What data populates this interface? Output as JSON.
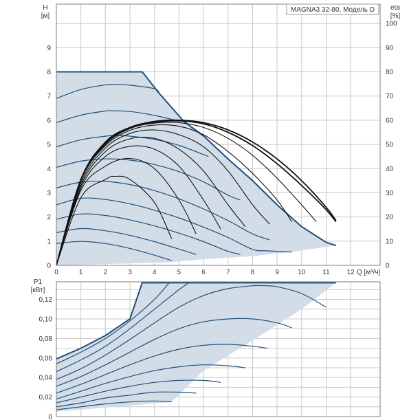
{
  "chart_data": [
    {
      "type": "line",
      "title": "MAGNA3 32-80, Модель D",
      "xlabel": "Q [м³/ч]",
      "x_ticks": [
        "0",
        "1",
        "2",
        "3",
        "4",
        "5",
        "6",
        "7",
        "8",
        "9",
        "10",
        "11",
        "12"
      ],
      "y_left_label": "H",
      "y_left_unit": "[м]",
      "y_left_ticks": [
        "0",
        "1",
        "2",
        "3",
        "4",
        "5",
        "6",
        "7",
        "8",
        "9"
      ],
      "y_right_label": "eta",
      "y_right_unit": "[%]",
      "y_right_ticks": [
        "0",
        "10",
        "20",
        "30",
        "40",
        "50",
        "60",
        "70",
        "80",
        "90",
        "100"
      ],
      "xlim": [
        0,
        13.2
      ],
      "ylim_left": [
        0,
        10.8
      ],
      "ylim_right": [
        0,
        108
      ],
      "grid": true,
      "colors": {
        "fill": "#d3dde8",
        "curve": "#1f4f7a",
        "eta": "#111111",
        "grid": "#c8c8c8"
      },
      "envelope": [
        [
          0,
          8
        ],
        [
          3.5,
          8
        ],
        [
          4.2,
          7.1
        ],
        [
          5.2,
          5.95
        ],
        [
          6,
          5.35
        ],
        [
          7,
          4.4
        ],
        [
          8,
          3.5
        ],
        [
          9,
          2.5
        ],
        [
          10,
          1.6
        ],
        [
          11,
          0.95
        ],
        [
          11.4,
          0.82
        ],
        [
          9.6,
          0.55
        ],
        [
          8,
          0.38
        ],
        [
          6,
          0.25
        ],
        [
          4.5,
          0.12
        ],
        [
          0,
          0
        ]
      ],
      "head_curves": [
        [
          [
            0,
            8
          ],
          [
            3.5,
            8
          ]
        ],
        [
          [
            0,
            6.9
          ],
          [
            1,
            7.27
          ],
          [
            2,
            7.46
          ],
          [
            2.5,
            7.48
          ],
          [
            3,
            7.45
          ],
          [
            4,
            7.3
          ],
          [
            4.2,
            7.1
          ]
        ],
        [
          [
            0,
            5.9
          ],
          [
            1,
            6.21
          ],
          [
            2,
            6.38
          ],
          [
            2.3,
            6.39
          ],
          [
            3,
            6.36
          ],
          [
            4,
            6.2
          ],
          [
            5,
            5.96
          ]
        ],
        [
          [
            0,
            4.9
          ],
          [
            1,
            5.19
          ],
          [
            2,
            5.34
          ],
          [
            2.4,
            5.36
          ],
          [
            3,
            5.34
          ],
          [
            4,
            5.21
          ],
          [
            5,
            4.96
          ],
          [
            6,
            4.58
          ],
          [
            6.2,
            4.5
          ]
        ],
        [
          [
            0,
            4.05
          ],
          [
            1,
            4.31
          ],
          [
            2,
            4.4
          ],
          [
            3,
            4.35
          ],
          [
            4,
            4.17
          ],
          [
            5,
            3.87
          ],
          [
            6,
            3.45
          ],
          [
            7,
            2.9
          ],
          [
            7.5,
            2.7
          ]
        ],
        [
          [
            0,
            3.2
          ],
          [
            1,
            3.44
          ],
          [
            2,
            3.47
          ],
          [
            3,
            3.34
          ],
          [
            4,
            3.09
          ],
          [
            5,
            2.75
          ],
          [
            6,
            2.33
          ],
          [
            7,
            1.85
          ],
          [
            8,
            1.3
          ],
          [
            8.7,
            1.05
          ]
        ],
        [
          [
            0,
            2.5
          ],
          [
            1,
            2.77
          ],
          [
            2,
            2.72
          ],
          [
            3,
            2.54
          ],
          [
            4,
            2.28
          ],
          [
            5,
            1.96
          ],
          [
            6,
            1.58
          ],
          [
            7,
            1.15
          ],
          [
            8,
            0.66
          ],
          [
            8.6,
            0.6
          ],
          [
            9.6,
            0.55
          ]
        ],
        [
          [
            0,
            1.9
          ],
          [
            1,
            2.12
          ],
          [
            2,
            2.06
          ],
          [
            3,
            1.88
          ],
          [
            4,
            1.63
          ],
          [
            5,
            1.33
          ],
          [
            6,
            0.98
          ],
          [
            7,
            0.58
          ],
          [
            7.5,
            0.45
          ]
        ],
        [
          [
            0,
            1.35
          ],
          [
            1,
            1.52
          ],
          [
            2,
            1.43
          ],
          [
            3,
            1.24
          ],
          [
            4,
            0.98
          ],
          [
            5,
            0.67
          ],
          [
            5.7,
            0.45
          ]
        ],
        [
          [
            0,
            0.9
          ],
          [
            1,
            0.99
          ],
          [
            2,
            0.9
          ],
          [
            3,
            0.7
          ],
          [
            4,
            0.42
          ],
          [
            4.7,
            0.2
          ]
        ]
      ],
      "eta_curves": [
        [
          [
            0,
            0
          ],
          [
            1,
            28
          ],
          [
            2,
            35.5
          ],
          [
            2.4,
            36.8
          ],
          [
            3,
            35.5
          ],
          [
            4,
            26
          ],
          [
            4.7,
            11
          ]
        ],
        [
          [
            0,
            0
          ],
          [
            1,
            31
          ],
          [
            2,
            41
          ],
          [
            3,
            44.2
          ],
          [
            4,
            40
          ],
          [
            5,
            27
          ],
          [
            5.7,
            13
          ]
        ],
        [
          [
            0,
            0
          ],
          [
            1,
            32
          ],
          [
            2,
            45
          ],
          [
            3,
            49.2
          ],
          [
            4,
            48
          ],
          [
            5,
            41
          ],
          [
            6,
            27
          ],
          [
            6.7,
            15
          ]
        ],
        [
          [
            0,
            0
          ],
          [
            1,
            33
          ],
          [
            2,
            47
          ],
          [
            3,
            52.3
          ],
          [
            4,
            52.5
          ],
          [
            5,
            48
          ],
          [
            6,
            39
          ],
          [
            7,
            25
          ],
          [
            7.7,
            16
          ]
        ],
        [
          [
            0,
            0
          ],
          [
            1,
            34
          ],
          [
            2,
            48.5
          ],
          [
            3,
            54.5
          ],
          [
            4,
            56
          ],
          [
            5,
            54
          ],
          [
            6,
            49
          ],
          [
            7,
            39
          ],
          [
            8,
            25
          ],
          [
            8.7,
            17
          ]
        ],
        [
          [
            0,
            0
          ],
          [
            1,
            35
          ],
          [
            2,
            49.5
          ],
          [
            3,
            55.8
          ],
          [
            4,
            58
          ],
          [
            5,
            57.5
          ],
          [
            6,
            54
          ],
          [
            7,
            47
          ],
          [
            8,
            38
          ],
          [
            9,
            27
          ],
          [
            9.6,
            18
          ]
        ],
        [
          [
            0,
            0
          ],
          [
            1,
            35
          ],
          [
            2,
            50
          ],
          [
            3,
            56.5
          ],
          [
            4,
            58.8
          ],
          [
            5,
            59
          ],
          [
            6,
            57
          ],
          [
            7,
            52.5
          ],
          [
            8,
            45.5
          ],
          [
            9,
            36
          ],
          [
            10,
            25
          ],
          [
            10.6,
            18
          ]
        ],
        [
          [
            0,
            0
          ],
          [
            1,
            35.5
          ],
          [
            2,
            50.5
          ],
          [
            3,
            56.8
          ],
          [
            4,
            59.2
          ],
          [
            5,
            59.7
          ],
          [
            6,
            58.5
          ],
          [
            7,
            55
          ],
          [
            8,
            49.5
          ],
          [
            9,
            42
          ],
          [
            10,
            33
          ],
          [
            11,
            23
          ],
          [
            11.4,
            18
          ]
        ],
        [
          [
            0,
            0
          ],
          [
            1,
            35.5
          ],
          [
            2,
            51
          ],
          [
            3,
            57
          ],
          [
            4,
            59.5
          ],
          [
            5,
            60
          ],
          [
            6,
            59
          ],
          [
            7,
            56
          ],
          [
            8,
            51
          ],
          [
            9,
            44
          ],
          [
            10,
            35
          ],
          [
            11,
            24
          ],
          [
            11.4,
            18.5
          ]
        ]
      ]
    },
    {
      "type": "line",
      "ylabel": "P1",
      "y_unit": "[кВт]",
      "y_ticks": [
        "0",
        "0,02",
        "0,04",
        "0,06",
        "0,08",
        "0,10",
        "0,12"
      ],
      "xlim": [
        0,
        13.2
      ],
      "ylim": [
        0,
        0.138
      ],
      "grid": true,
      "envelope": [
        [
          0,
          0.059
        ],
        [
          1,
          0.07
        ],
        [
          2,
          0.083
        ],
        [
          3,
          0.1
        ],
        [
          3.5,
          0.137
        ],
        [
          11.4,
          0.137
        ],
        [
          10,
          0.11
        ],
        [
          8,
          0.078
        ],
        [
          6,
          0.047
        ],
        [
          4.7,
          0.015
        ],
        [
          0,
          0.005
        ]
      ],
      "power_curves": [
        [
          [
            0,
            0.059
          ],
          [
            1,
            0.07
          ],
          [
            2,
            0.083
          ],
          [
            3,
            0.1
          ],
          [
            3.5,
            0.137
          ],
          [
            11.4,
            0.137
          ]
        ],
        [
          [
            0,
            0.054
          ],
          [
            1,
            0.066
          ],
          [
            2,
            0.08
          ],
          [
            3,
            0.098
          ],
          [
            4,
            0.12
          ],
          [
            4.6,
            0.137
          ]
        ],
        [
          [
            0,
            0.046
          ],
          [
            1,
            0.058
          ],
          [
            2,
            0.072
          ],
          [
            3,
            0.09
          ],
          [
            4,
            0.11
          ],
          [
            5,
            0.13
          ],
          [
            5.4,
            0.137
          ]
        ],
        [
          [
            0,
            0.038
          ],
          [
            1,
            0.049
          ],
          [
            2,
            0.063
          ],
          [
            3,
            0.079
          ],
          [
            4,
            0.096
          ],
          [
            5,
            0.112
          ],
          [
            6,
            0.124
          ],
          [
            7,
            0.131
          ],
          [
            8,
            0.134
          ],
          [
            8.5,
            0.134
          ],
          [
            9,
            0.133
          ],
          [
            10,
            0.126
          ],
          [
            11,
            0.112
          ]
        ],
        [
          [
            0,
            0.031
          ],
          [
            1,
            0.041
          ],
          [
            2,
            0.053
          ],
          [
            3,
            0.066
          ],
          [
            4,
            0.079
          ],
          [
            5,
            0.09
          ],
          [
            6,
            0.097
          ],
          [
            7,
            0.1
          ],
          [
            8,
            0.1
          ],
          [
            9,
            0.096
          ],
          [
            9.6,
            0.091
          ]
        ],
        [
          [
            0,
            0.024
          ],
          [
            1,
            0.033
          ],
          [
            2,
            0.043
          ],
          [
            3,
            0.053
          ],
          [
            4,
            0.062
          ],
          [
            5,
            0.069
          ],
          [
            6,
            0.073
          ],
          [
            7,
            0.074
          ],
          [
            8,
            0.072
          ],
          [
            8.6,
            0.07
          ]
        ],
        [
          [
            0,
            0.018
          ],
          [
            1,
            0.026
          ],
          [
            2,
            0.034
          ],
          [
            3,
            0.041
          ],
          [
            4,
            0.047
          ],
          [
            5,
            0.051
          ],
          [
            6,
            0.053
          ],
          [
            7,
            0.052
          ],
          [
            7.7,
            0.05
          ]
        ],
        [
          [
            0,
            0.014
          ],
          [
            1,
            0.02
          ],
          [
            2,
            0.026
          ],
          [
            3,
            0.031
          ],
          [
            4,
            0.035
          ],
          [
            5,
            0.037
          ],
          [
            6,
            0.037
          ],
          [
            6.7,
            0.035
          ]
        ],
        [
          [
            0,
            0.01
          ],
          [
            1,
            0.014
          ],
          [
            2,
            0.019
          ],
          [
            3,
            0.022
          ],
          [
            4,
            0.025
          ],
          [
            5,
            0.025
          ],
          [
            5.7,
            0.024
          ]
        ],
        [
          [
            0,
            0.007
          ],
          [
            1,
            0.01
          ],
          [
            2,
            0.013
          ],
          [
            3,
            0.015
          ],
          [
            4,
            0.016
          ],
          [
            4.7,
            0.015
          ]
        ]
      ]
    }
  ]
}
